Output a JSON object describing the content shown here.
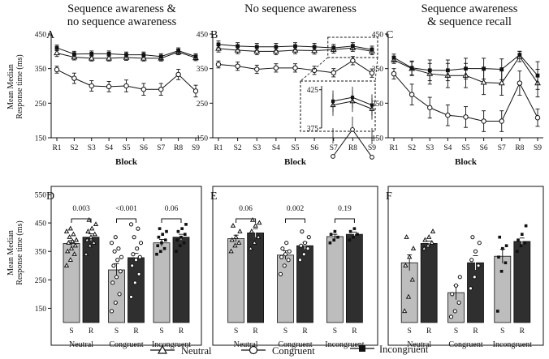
{
  "chart_data": {
    "type": "line+bar",
    "y_label_lines": [
      "Mean Median",
      "Response time (ms)"
    ],
    "x_label_top": "Block",
    "blocks": [
      "R1",
      "S2",
      "S3",
      "S4",
      "S5",
      "S6",
      "S7",
      "R8",
      "S9"
    ],
    "top_yticks": [
      150,
      250,
      350,
      450
    ],
    "top_ylim": [
      150,
      450
    ],
    "bottom_yticks": [
      150,
      250,
      350,
      450,
      550
    ],
    "bottom_ylim": [
      100,
      550
    ],
    "conditions": [
      "Neutral",
      "Congruent",
      "Incongruent"
    ],
    "block_types": [
      "S",
      "R"
    ],
    "legend": [
      {
        "name": "Neutral",
        "marker": "triangle"
      },
      {
        "name": "Congruent",
        "marker": "circle"
      },
      {
        "name": "Incongruent",
        "marker": "square"
      }
    ],
    "panels_top": [
      {
        "label": "A",
        "title_lines": [
          "Sequence awareness &",
          "no sequence awareness"
        ],
        "series": [
          {
            "name": "Neutral",
            "values": [
              395,
              383,
              380,
              380,
              382,
              380,
              380,
              398,
              381
            ],
            "errors": [
              10,
              8,
              8,
              8,
              8,
              8,
              8,
              8,
              8
            ]
          },
          {
            "name": "Congruent",
            "values": [
              347,
              322,
              300,
              298,
              300,
              290,
              290,
              333,
              285
            ],
            "errors": [
              10,
              15,
              15,
              15,
              17,
              17,
              17,
              15,
              17
            ]
          },
          {
            "name": "Incongruent",
            "values": [
              410,
              392,
              393,
              393,
              390,
              390,
              385,
              402,
              385
            ],
            "errors": [
              8,
              8,
              8,
              8,
              8,
              8,
              8,
              8,
              8
            ]
          }
        ]
      },
      {
        "label": "B",
        "title_lines": [
          "No sequence awareness"
        ],
        "series": [
          {
            "name": "Neutral",
            "values": [
              408,
              403,
              400,
              400,
              403,
              402,
              405,
              410,
              400
            ],
            "errors": [
              10,
              10,
              10,
              10,
              10,
              10,
              10,
              10,
              10
            ]
          },
          {
            "name": "Congruent",
            "values": [
              362,
              357,
              348,
              352,
              352,
              345,
              338,
              373,
              337
            ],
            "errors": [
              10,
              12,
              12,
              12,
              12,
              12,
              12,
              12,
              12
            ]
          },
          {
            "name": "Incongruent",
            "values": [
              420,
              415,
              413,
              413,
              415,
              413,
              410,
              415,
              405
            ],
            "errors": [
              10,
              10,
              10,
              10,
              10,
              10,
              10,
              10,
              10
            ]
          }
        ],
        "inset": {
          "yticks": [
            375,
            425
          ],
          "ylim": [
            375,
            430
          ],
          "blocks": [
            "S7",
            "R8",
            "S9"
          ]
        }
      },
      {
        "label": "C",
        "title_lines": [
          "Sequence awareness",
          "& sequence recall"
        ],
        "series": [
          {
            "name": "Neutral",
            "values": [
              375,
              350,
              335,
              330,
              330,
              310,
              308,
              385,
              308
            ],
            "errors": [
              10,
              20,
              30,
              35,
              35,
              35,
              35,
              15,
              40
            ]
          },
          {
            "name": "Congruent",
            "values": [
              335,
              275,
              237,
              215,
              210,
              198,
              198,
              308,
              208
            ],
            "errors": [
              15,
              30,
              30,
              30,
              30,
              30,
              30,
              35,
              25
            ]
          },
          {
            "name": "Incongruent",
            "values": [
              382,
              352,
              345,
              345,
              350,
              350,
              348,
              390,
              330
            ],
            "errors": [
              10,
              20,
              30,
              30,
              30,
              30,
              30,
              10,
              40
            ]
          }
        ]
      }
    ],
    "panels_bottom": [
      {
        "label": "D",
        "bars": [
          {
            "condition": "Neutral",
            "S": 378,
            "R": 400,
            "S_err": 10,
            "R_err": 12
          },
          {
            "condition": "Congruent",
            "S": 285,
            "R": 328,
            "S_err": 22,
            "R_err": 15
          },
          {
            "condition": "Incongruent",
            "S": 380,
            "R": 400,
            "S_err": 12,
            "R_err": 10
          }
        ],
        "pvalues": [
          "0.003",
          "<0.001",
          "0.06"
        ],
        "points": {
          "Neutral": {
            "S": [
              300,
              320,
              340,
              350,
              360,
              370,
              380,
              385,
              390,
              400,
              410,
              420,
              430
            ],
            "R": [
              340,
              370,
              380,
              390,
              400,
              410,
              420,
              430,
              445,
              460
            ]
          },
          "Congruent": {
            "S": [
              140,
              170,
              200,
              240,
              260,
              280,
              300,
              320,
              330,
              350,
              360,
              380,
              400
            ],
            "R": [
              190,
              240,
              270,
              300,
              320,
              330,
              340,
              360,
              380,
              400,
              430,
              445
            ]
          },
          "Incongruent": {
            "S": [
              340,
              350,
              360,
              370,
              380,
              390,
              400,
              410,
              420,
              430
            ],
            "R": [
              350,
              370,
              380,
              390,
              400,
              410,
              420,
              430,
              445
            ]
          }
        }
      },
      {
        "label": "E",
        "bars": [
          {
            "condition": "Neutral",
            "S": 395,
            "R": 415,
            "S_err": 12,
            "R_err": 15
          },
          {
            "condition": "Congruent",
            "S": 337,
            "R": 370,
            "S_err": 15,
            "R_err": 12
          },
          {
            "condition": "Incongruent",
            "S": 402,
            "R": 410,
            "S_err": 8,
            "R_err": 8
          }
        ],
        "pvalues": [
          "0.06",
          "0.002",
          "0.19"
        ],
        "points": {
          "Neutral": {
            "S": [
              350,
              370,
              380,
              390,
              400,
              420,
              440
            ],
            "R": [
              360,
              380,
              400,
              420,
              440,
              450,
              460
            ]
          },
          "Congruent": {
            "S": [
              270,
              300,
              320,
              330,
              340,
              350,
              360,
              380
            ],
            "R": [
              320,
              340,
              360,
              370,
              380,
              400,
              420
            ]
          },
          "Incongruent": {
            "S": [
              380,
              390,
              400,
              410,
              420
            ],
            "R": [
              390,
              400,
              410,
              420,
              430
            ]
          }
        }
      },
      {
        "label": "F",
        "bars": [
          {
            "condition": "Neutral",
            "S": 310,
            "R": 378,
            "S_err": 28,
            "R_err": 8
          },
          {
            "condition": "Congruent",
            "S": 205,
            "R": 310,
            "S_err": 25,
            "R_err": 25
          },
          {
            "condition": "Incongruent",
            "S": 333,
            "R": 385,
            "S_err": 25,
            "R_err": 12
          }
        ],
        "pvalues": [],
        "points": {
          "Neutral": {
            "S": [
              140,
              190,
              250,
              300,
              330,
              360,
              400
            ],
            "R": [
              360,
              370,
              380,
              390,
              400,
              420
            ]
          },
          "Congruent": {
            "S": [
              120,
              140,
              170,
              200,
              230,
              260
            ],
            "R": [
              220,
              260,
              300,
              320,
              350,
              380,
              400
            ]
          },
          "Incongruent": {
            "S": [
              140,
              280,
              310,
              330,
              360,
              370,
              400
            ],
            "R": [
              350,
              370,
              380,
              390,
              410,
              440
            ]
          }
        }
      }
    ]
  }
}
